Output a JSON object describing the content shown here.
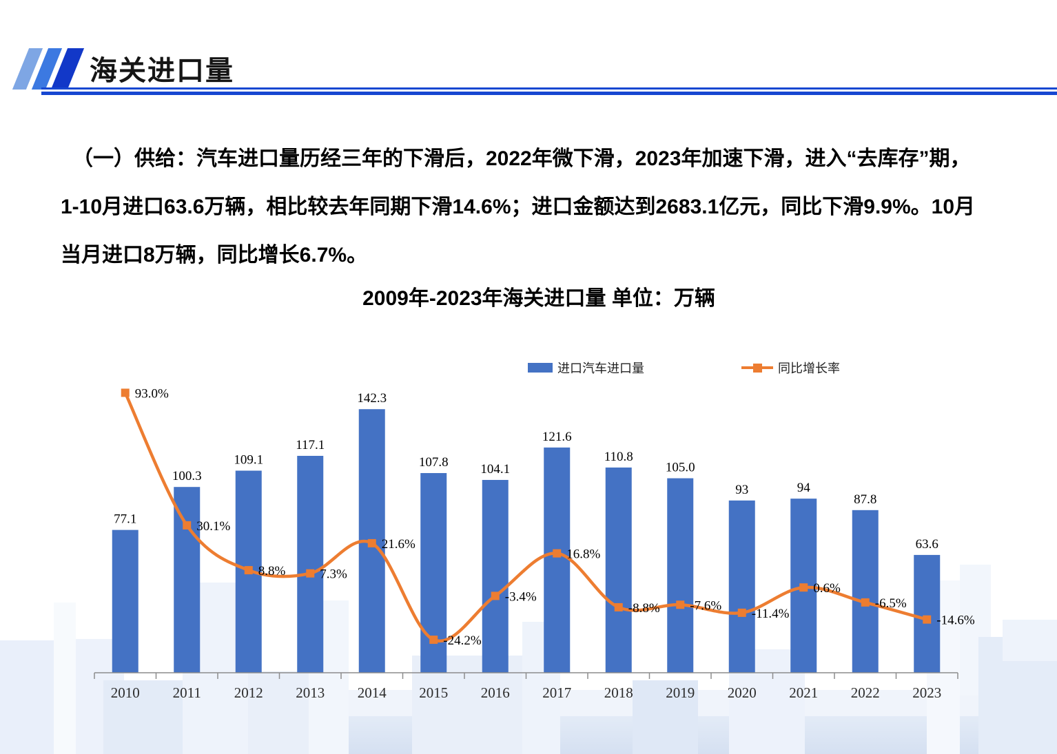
{
  "header": {
    "title": "海关进口量"
  },
  "intro": {
    "line1": "（一）供给：汽车进口量历经三年的下滑后，2022年微下滑，2023年加速下滑，进入“去库存”期，",
    "line2": "1-10月进口63.6万辆，相比较去年同期下滑14.6%；进口金额达到2683.1亿元，同比下滑9.9%。10月",
    "line3": "当月进口8万辆，同比增长6.7%。"
  },
  "chart_data": {
    "type": "bar",
    "combo": "bar+line",
    "title": "2009年-2023年海关进口量 单位：万辆",
    "categories": [
      "2010",
      "2011",
      "2012",
      "2013",
      "2014",
      "2015",
      "2016",
      "2017",
      "2018",
      "2019",
      "2020",
      "2021",
      "2022",
      "2023"
    ],
    "series": [
      {
        "name": "进口汽车进口量",
        "type": "bar",
        "unit": "万辆",
        "color": "#4472C4",
        "values": [
          77.1,
          100.3,
          109.1,
          117.1,
          142.3,
          107.8,
          104.1,
          121.6,
          110.8,
          105.0,
          93,
          94,
          87.8,
          63.6
        ],
        "labels": [
          "77.1",
          "100.3",
          "109.1",
          "117.1",
          "142.3",
          "107.8",
          "104.1",
          "121.6",
          "110.8",
          "105.0",
          "93",
          "94",
          "87.8",
          "63.6"
        ]
      },
      {
        "name": "同比增长率",
        "type": "line",
        "unit": "%",
        "color": "#ED7D31",
        "values": [
          93.0,
          30.1,
          8.8,
          7.3,
          21.6,
          -24.2,
          -3.4,
          16.8,
          -8.8,
          -7.6,
          -11.4,
          0.6,
          -6.5,
          -14.6
        ],
        "labels": [
          "93.0%",
          "30.1%",
          "8.8%",
          "7.3%",
          "21.6%",
          "-24.2%",
          "-3.4%",
          "16.8%",
          "-8.8%",
          "-7.6%",
          "-11.4%",
          "0.6%",
          "-6.5%",
          "-14.6%"
        ]
      }
    ],
    "legend_position": "top",
    "grid": false,
    "value_axis_visible": false,
    "bar_axis_implied_range": [
      0,
      160
    ],
    "line_axis_implied_range": [
      -40,
      100
    ]
  },
  "colors": {
    "bar": "#4472C4",
    "line": "#ED7D31",
    "accent_rule": "#1747D1",
    "axis": "#8c8c8c"
  }
}
